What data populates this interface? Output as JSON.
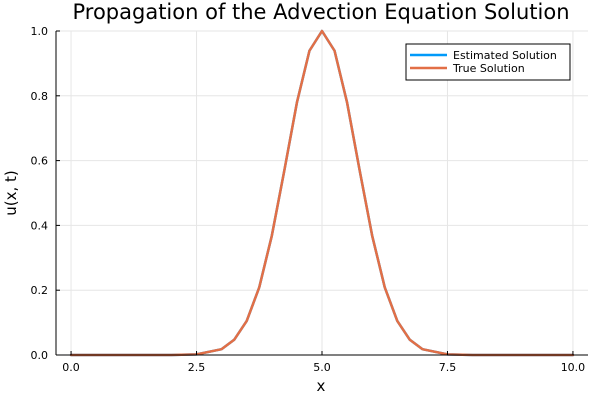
{
  "chart_data": {
    "type": "line",
    "title": "Propagation of the Advection Equation Solution",
    "xlabel": "x",
    "ylabel": "u(x, t)",
    "xlim": [
      -0.3,
      10.3
    ],
    "ylim": [
      0.0,
      1.0
    ],
    "xticks": [
      0.0,
      2.5,
      5.0,
      7.5,
      10.0
    ],
    "xtick_labels": [
      "0.0",
      "2.5",
      "5.0",
      "7.5",
      "10.0"
    ],
    "yticks": [
      0.0,
      0.2,
      0.4,
      0.6,
      0.8,
      1.0
    ],
    "ytick_labels": [
      "0.0",
      "0.2",
      "0.4",
      "0.6",
      "0.8",
      "1.0"
    ],
    "grid": true,
    "legend_position": "top-right",
    "x": [
      0.0,
      0.5,
      1.0,
      1.5,
      2.0,
      2.5,
      3.0,
      3.25,
      3.5,
      3.75,
      4.0,
      4.25,
      4.5,
      4.75,
      5.0,
      5.25,
      5.5,
      5.75,
      6.0,
      6.25,
      6.5,
      6.75,
      7.0,
      7.5,
      8.0,
      8.5,
      9.0,
      9.5,
      10.0
    ],
    "series": [
      {
        "name": "Estimated Solution",
        "color": "#009af9",
        "values": [
          0.0,
          0.0,
          0.0,
          0.0,
          0.0,
          0.002,
          0.018,
          0.047,
          0.105,
          0.209,
          0.368,
          0.57,
          0.779,
          0.939,
          1.0,
          0.939,
          0.779,
          0.57,
          0.368,
          0.209,
          0.105,
          0.047,
          0.018,
          0.002,
          0.0,
          0.0,
          0.0,
          0.0,
          0.0
        ]
      },
      {
        "name": "True Solution",
        "color": "#e26f46",
        "values": [
          0.0,
          0.0,
          0.0,
          0.0,
          0.0,
          0.002,
          0.018,
          0.047,
          0.105,
          0.209,
          0.368,
          0.57,
          0.779,
          0.939,
          1.0,
          0.939,
          0.779,
          0.57,
          0.368,
          0.209,
          0.105,
          0.047,
          0.018,
          0.002,
          0.0,
          0.0,
          0.0,
          0.0,
          0.0
        ]
      }
    ]
  }
}
